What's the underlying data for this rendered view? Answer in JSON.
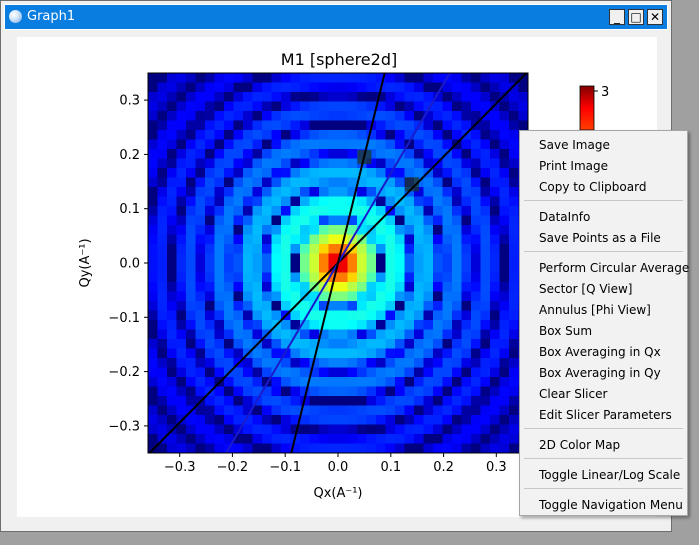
{
  "window": {
    "title": "Graph1",
    "buttons": {
      "minimize": "_",
      "maximize": "□",
      "close": "✕"
    }
  },
  "chart_data": {
    "type": "heatmap",
    "title": "M1 [sphere2d]",
    "xlabel": "Qx(A⁻¹)",
    "ylabel": "Qy(A⁻¹)",
    "xlim": [
      -0.36,
      0.36
    ],
    "ylim": [
      -0.35,
      0.35
    ],
    "x_ticks": [
      -0.3,
      -0.2,
      -0.1,
      0.0,
      0.1,
      0.2,
      0.3
    ],
    "x_tick_labels": [
      "−0.3",
      "−0.2",
      "−0.1",
      "0.0",
      "0.1",
      "0.2",
      "0.3"
    ],
    "y_ticks": [
      0.3,
      0.2,
      0.1,
      0.0,
      -0.1,
      -0.2,
      -0.3
    ],
    "y_tick_labels": [
      "0.3",
      "0.2",
      "0.1",
      "0.0",
      "−0.1",
      "−0.2",
      "−0.3"
    ],
    "colorbar": {
      "max_label": "3",
      "max": 3
    },
    "slicer_lines": [
      {
        "color": "#000000",
        "slope": 0.98
      },
      {
        "color": "#1a1acc",
        "slope": 1.65
      },
      {
        "color": "#000000",
        "slope": 3.95
      }
    ],
    "dark_markers": [
      [
        0.05,
        0.195
      ],
      [
        0.14,
        0.145
      ]
    ]
  },
  "context_menu": {
    "groups": [
      [
        "Save Image",
        "Print Image",
        "Copy to Clipboard"
      ],
      [
        "DataInfo",
        "Save Points as a File"
      ],
      [
        "Perform Circular Average",
        "Sector [Q View]",
        "Annulus [Phi View]",
        "Box Sum",
        "Box Averaging in Qx",
        "Box Averaging in Qy",
        "Clear Slicer",
        "Edit Slicer Parameters"
      ],
      [
        "2D Color Map"
      ],
      [
        "Toggle Linear/Log Scale"
      ],
      [
        "Toggle Navigation Menu"
      ]
    ]
  }
}
